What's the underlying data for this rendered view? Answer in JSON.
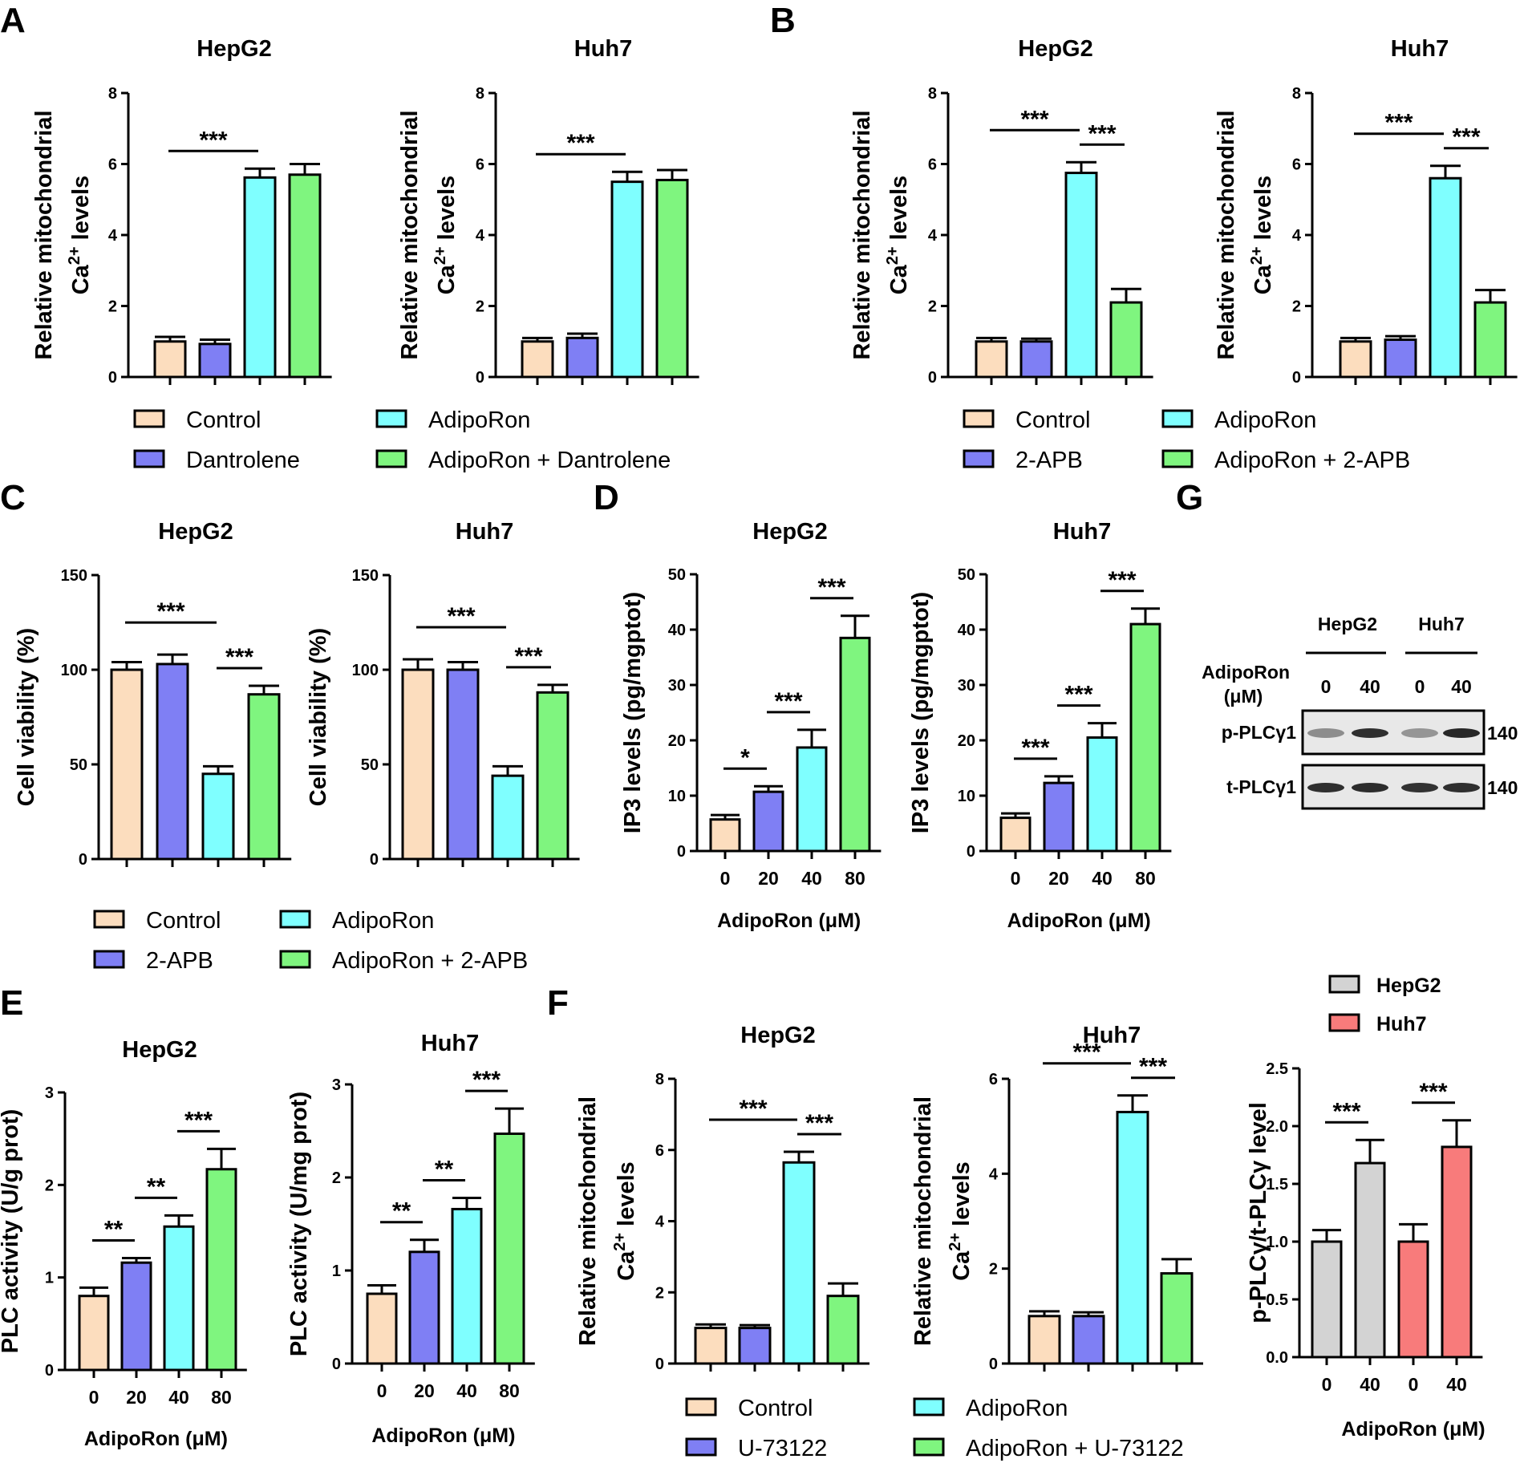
{
  "colors": {
    "control": "#FCDDBE",
    "inhibitor": "#7F7FF4",
    "adiporon": "#7FFFFF",
    "combo": "#7FF57F",
    "hepg2": "#D3D3D3",
    "huh7": "#F87B7B"
  },
  "legends": [
    {
      "items": [
        "Control",
        "AdipoRon",
        "Dantrolene",
        "AdipoRon + Dantrolene"
      ]
    },
    {
      "items": [
        "Control",
        "AdipoRon",
        "2-APB",
        "AdipoRon + 2-APB"
      ]
    },
    {
      "items": [
        "Control",
        "AdipoRon",
        "2-APB",
        "AdipoRon + 2-APB"
      ]
    },
    {
      "items": [
        "Control",
        "AdipoRon",
        "U-73122",
        "AdipoRon + U-73122"
      ]
    },
    {
      "items": [
        "HepG2",
        "Huh7"
      ]
    }
  ],
  "panel_letters": [
    "A",
    "B",
    "C",
    "D",
    "E",
    "F",
    "G"
  ],
  "western_blot": {
    "cell_lines": [
      "HepG2",
      "Huh7"
    ],
    "treatment_label": "AdipoRon",
    "treatment_unit": "(μM)",
    "doses": [
      "0",
      "40",
      "0",
      "40"
    ],
    "rows": [
      {
        "label": "p-PLCγ1",
        "size": "140",
        "intensity": [
          0.35,
          0.9,
          0.3,
          0.95
        ]
      },
      {
        "label": "t-PLCγ1",
        "size": "140",
        "intensity": [
          0.9,
          0.92,
          0.88,
          0.9
        ]
      }
    ]
  },
  "chart_data": [
    {
      "id": "A1",
      "type": "bar",
      "title": "HepG2",
      "ylabel": [
        "Relative mitochondrial",
        "Ca2+ levels"
      ],
      "xlabel": "",
      "categories": [
        "Control",
        "Dantrolene",
        "AdipoRon",
        "AdipoRon + Dantrolene"
      ],
      "values": [
        1.0,
        0.93,
        5.62,
        5.7
      ],
      "errors": [
        0.13,
        0.12,
        0.25,
        0.3
      ],
      "ylim": [
        0,
        8
      ],
      "yticks": [
        "0",
        "2",
        "4",
        "6",
        "8"
      ],
      "xticks": [],
      "significance": [
        {
          "from": 0,
          "to": 2,
          "label": "***"
        }
      ]
    },
    {
      "id": "A2",
      "type": "bar",
      "title": "Huh7",
      "ylabel": [
        "Relative mitochondrial",
        "Ca2+ levels"
      ],
      "xlabel": "",
      "categories": [
        "Control",
        "Dantrolene",
        "AdipoRon",
        "AdipoRon + Dantrolene"
      ],
      "values": [
        1.0,
        1.1,
        5.5,
        5.55
      ],
      "errors": [
        0.1,
        0.12,
        0.28,
        0.28
      ],
      "ylim": [
        0,
        8
      ],
      "yticks": [
        "0",
        "2",
        "4",
        "6",
        "8"
      ],
      "xticks": [],
      "significance": [
        {
          "from": 0,
          "to": 2,
          "label": "***"
        }
      ]
    },
    {
      "id": "B1",
      "type": "bar",
      "title": "HepG2",
      "ylabel": [
        "Relative mitochondrial",
        "Ca2+ levels"
      ],
      "xlabel": "",
      "categories": [
        "Control",
        "2-APB",
        "AdipoRon",
        "AdipoRon + 2-APB"
      ],
      "values": [
        1.0,
        1.0,
        5.75,
        2.1
      ],
      "errors": [
        0.1,
        0.08,
        0.3,
        0.38
      ],
      "ylim": [
        0,
        8
      ],
      "yticks": [
        "0",
        "2",
        "4",
        "6",
        "8"
      ],
      "xticks": [],
      "significance": [
        {
          "from": 0,
          "to": 2,
          "label": "***"
        },
        {
          "from": 2,
          "to": 3,
          "label": "***"
        }
      ]
    },
    {
      "id": "B2",
      "type": "bar",
      "title": "Huh7",
      "ylabel": [
        "Relative mitochondrial",
        "Ca2+ levels"
      ],
      "xlabel": "",
      "categories": [
        "Control",
        "2-APB",
        "AdipoRon",
        "AdipoRon + 2-APB"
      ],
      "values": [
        1.0,
        1.05,
        5.6,
        2.1
      ],
      "errors": [
        0.1,
        0.1,
        0.35,
        0.35
      ],
      "ylim": [
        0,
        8
      ],
      "yticks": [
        "0",
        "2",
        "4",
        "6",
        "8"
      ],
      "xticks": [],
      "significance": [
        {
          "from": 0,
          "to": 2,
          "label": "***"
        },
        {
          "from": 2,
          "to": 3,
          "label": "***"
        }
      ]
    },
    {
      "id": "C1",
      "type": "bar",
      "title": "HepG2",
      "ylabel": [
        "Cell viability (%)"
      ],
      "xlabel": "",
      "categories": [
        "Control",
        "2-APB",
        "AdipoRon",
        "AdipoRon + 2-APB"
      ],
      "values": [
        100,
        103,
        45,
        87
      ],
      "errors": [
        4,
        5,
        4,
        4.5
      ],
      "ylim": [
        0,
        150
      ],
      "yticks": [
        "0",
        "50",
        "100",
        "150"
      ],
      "xticks": [],
      "significance": [
        {
          "from": 0,
          "to": 2,
          "label": "***"
        },
        {
          "from": 2,
          "to": 3,
          "label": "***"
        }
      ]
    },
    {
      "id": "C2",
      "type": "bar",
      "title": "Huh7",
      "ylabel": [
        "Cell viability (%)"
      ],
      "xlabel": "",
      "categories": [
        "Control",
        "2-APB",
        "AdipoRon",
        "AdipoRon + 2-APB"
      ],
      "values": [
        100,
        100,
        44,
        88
      ],
      "errors": [
        5.5,
        4,
        5,
        4
      ],
      "ylim": [
        0,
        150
      ],
      "yticks": [
        "0",
        "50",
        "100",
        "150"
      ],
      "xticks": [],
      "significance": [
        {
          "from": 0,
          "to": 2,
          "label": "***"
        },
        {
          "from": 2,
          "to": 3,
          "label": "***"
        }
      ]
    },
    {
      "id": "D1",
      "type": "bar",
      "title": "HepG2",
      "ylabel": [
        "IP3 levels (pg/mgptot)"
      ],
      "xlabel": "AdipoRon (μM)",
      "categories": [
        "0",
        "20",
        "40",
        "80"
      ],
      "values": [
        5.7,
        10.7,
        18.7,
        38.5
      ],
      "errors": [
        0.8,
        1.0,
        3.2,
        4.0
      ],
      "ylim": [
        0,
        50
      ],
      "yticks": [
        "0",
        "10",
        "20",
        "30",
        "40",
        "50"
      ],
      "xticks": [
        "0",
        "20",
        "40",
        "80"
      ],
      "significance": [
        {
          "from": 0,
          "to": 1,
          "label": "*"
        },
        {
          "from": 1,
          "to": 2,
          "label": "***"
        },
        {
          "from": 2,
          "to": 3,
          "label": "***"
        }
      ]
    },
    {
      "id": "D2",
      "type": "bar",
      "title": "Huh7",
      "ylabel": [
        "IP3 levels (pg/mgptot)"
      ],
      "xlabel": "AdipoRon (μM)",
      "categories": [
        "0",
        "20",
        "40",
        "80"
      ],
      "values": [
        6.0,
        12.3,
        20.5,
        41.0
      ],
      "errors": [
        0.8,
        1.2,
        2.6,
        2.8
      ],
      "ylim": [
        0,
        50
      ],
      "yticks": [
        "0",
        "10",
        "20",
        "30",
        "40",
        "50"
      ],
      "xticks": [
        "0",
        "20",
        "40",
        "80"
      ],
      "significance": [
        {
          "from": 0,
          "to": 1,
          "label": "***"
        },
        {
          "from": 1,
          "to": 2,
          "label": "***"
        },
        {
          "from": 2,
          "to": 3,
          "label": "***"
        }
      ]
    },
    {
      "id": "E1",
      "type": "bar",
      "title": "HepG2",
      "ylabel": [
        "PLC activity (U/g prot)"
      ],
      "xlabel": "AdipoRon (μM)",
      "categories": [
        "0",
        "20",
        "40",
        "80"
      ],
      "values": [
        0.8,
        1.16,
        1.55,
        2.17
      ],
      "errors": [
        0.09,
        0.05,
        0.12,
        0.22
      ],
      "ylim": [
        0,
        3
      ],
      "yticks": [
        "0",
        "1",
        "2",
        "3"
      ],
      "xticks": [
        "0",
        "20",
        "40",
        "80"
      ],
      "significance": [
        {
          "from": 0,
          "to": 1,
          "label": "**"
        },
        {
          "from": 1,
          "to": 2,
          "label": "**"
        },
        {
          "from": 2,
          "to": 3,
          "label": "***"
        }
      ]
    },
    {
      "id": "E2",
      "type": "bar",
      "title": "Huh7",
      "ylabel": [
        "PLC activity (U/mg prot)"
      ],
      "xlabel": "AdipoRon (μM)",
      "categories": [
        "0",
        "20",
        "40",
        "80"
      ],
      "values": [
        0.75,
        1.2,
        1.66,
        2.47
      ],
      "errors": [
        0.09,
        0.13,
        0.12,
        0.27
      ],
      "ylim": [
        0,
        3
      ],
      "yticks": [
        "0",
        "1",
        "2",
        "3"
      ],
      "xticks": [
        "0",
        "20",
        "40",
        "80"
      ],
      "significance": [
        {
          "from": 0,
          "to": 1,
          "label": "**"
        },
        {
          "from": 1,
          "to": 2,
          "label": "**"
        },
        {
          "from": 2,
          "to": 3,
          "label": "***"
        }
      ]
    },
    {
      "id": "F1",
      "type": "bar",
      "title": "HepG2",
      "ylabel": [
        "Relative mitochondrial",
        "Ca2+ levels"
      ],
      "xlabel": "",
      "categories": [
        "Control",
        "U-73122",
        "AdipoRon",
        "AdipoRon + U-73122"
      ],
      "values": [
        1.0,
        1.0,
        5.65,
        1.9
      ],
      "errors": [
        0.1,
        0.08,
        0.3,
        0.35
      ],
      "ylim": [
        0,
        8
      ],
      "yticks": [
        "0",
        "2",
        "4",
        "6",
        "8"
      ],
      "xticks": [],
      "significance": [
        {
          "from": 0,
          "to": 2,
          "label": "***"
        },
        {
          "from": 2,
          "to": 3,
          "label": "***"
        }
      ]
    },
    {
      "id": "F2",
      "type": "bar",
      "title": "Huh7",
      "ylabel": [
        "Relative mitochondrial",
        "Ca2+ levels"
      ],
      "xlabel": "",
      "categories": [
        "Control",
        "U-73122",
        "AdipoRon",
        "AdipoRon + U-73122"
      ],
      "values": [
        1.0,
        1.0,
        5.3,
        1.9
      ],
      "errors": [
        0.1,
        0.08,
        0.35,
        0.3
      ],
      "ylim": [
        0,
        6
      ],
      "yticks": [
        "0",
        "2",
        "4",
        "6"
      ],
      "xticks": [],
      "significance": [
        {
          "from": 0,
          "to": 2,
          "label": "***"
        },
        {
          "from": 2,
          "to": 3,
          "label": "***"
        }
      ]
    },
    {
      "id": "G",
      "type": "bar",
      "title": "",
      "ylabel": [
        "p-PLCγ/t-PLCγ level"
      ],
      "xlabel": "AdipoRon (μM)",
      "categories": [
        "HepG2 0",
        "HepG2 40",
        "Huh7 0",
        "Huh7 40"
      ],
      "values": [
        1.0,
        1.68,
        1.0,
        1.82
      ],
      "errors": [
        0.1,
        0.2,
        0.15,
        0.23
      ],
      "ylim": [
        0,
        2.5
      ],
      "yticks": [
        "0.0",
        "0.5",
        "1.0",
        "1.5",
        "2.0",
        "2.5"
      ],
      "xticks": [
        "0",
        "40",
        "0",
        "40"
      ],
      "significance": [
        {
          "from": 0,
          "to": 1,
          "label": "***"
        },
        {
          "from": 2,
          "to": 3,
          "label": "***"
        }
      ]
    }
  ]
}
